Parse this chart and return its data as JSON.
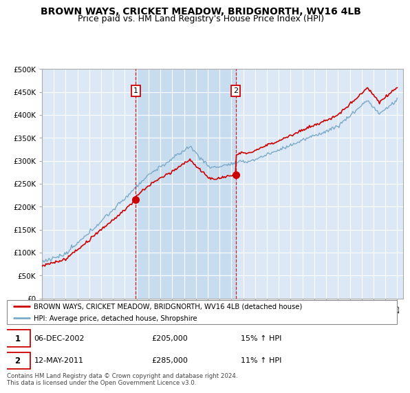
{
  "title": "BROWN WAYS, CRICKET MEADOW, BRIDGNORTH, WV16 4LB",
  "subtitle": "Price paid vs. HM Land Registry's House Price Index (HPI)",
  "ylim": [
    0,
    500000
  ],
  "yticks": [
    0,
    50000,
    100000,
    150000,
    200000,
    250000,
    300000,
    350000,
    400000,
    450000,
    500000
  ],
  "ytick_labels": [
    "£0",
    "£50K",
    "£100K",
    "£150K",
    "£200K",
    "£250K",
    "£300K",
    "£350K",
    "£400K",
    "£450K",
    "£500K"
  ],
  "plot_bg": "#dce8f5",
  "shade_color": "#c8dcf0",
  "red_color": "#cc0000",
  "blue_color": "#7aaac8",
  "date1": 2002.917,
  "date2": 2011.37,
  "marker1_value": 205000,
  "marker2_value": 285000,
  "legend_line1": "BROWN WAYS, CRICKET MEADOW, BRIDGNORTH, WV16 4LB (detached house)",
  "legend_line2": "HPI: Average price, detached house, Shropshire",
  "table_row1": [
    "1",
    "06-DEC-2002",
    "£205,000",
    "15% ↑ HPI"
  ],
  "table_row2": [
    "2",
    "12-MAY-2011",
    "£285,000",
    "11% ↑ HPI"
  ],
  "footer": "Contains HM Land Registry data © Crown copyright and database right 2024.\nThis data is licensed under the Open Government Licence v3.0.",
  "title_fontsize": 10,
  "subtitle_fontsize": 9
}
